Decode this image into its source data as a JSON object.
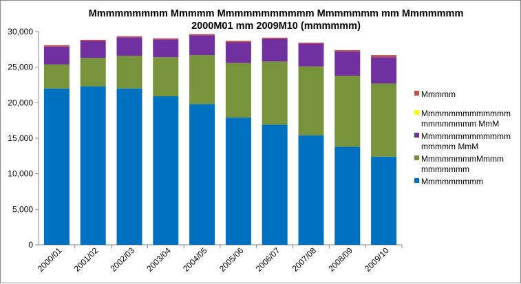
{
  "chart_data": {
    "type": "bar",
    "stacked": true,
    "title_lines": [
      "Mmmmmmmmm Mmmmm Mmmmmmmmmmm Mmmmmmm mm Mmmmmmm",
      "2000M01 mm 2009M10 (mmmmmm)"
    ],
    "categories": [
      "2000/01",
      "2001/02",
      "2002/03",
      "2003/04",
      "2004/05",
      "2005/06",
      "2006/07",
      "2007/08",
      "2008/09",
      "2009/10"
    ],
    "ylim": [
      0,
      30000
    ],
    "yticks": [
      "0",
      "5,000",
      "10,000",
      "15,000",
      "20,000",
      "25,000",
      "30,000"
    ],
    "ytick_values": [
      0,
      5000,
      10000,
      15000,
      20000,
      25000,
      30000
    ],
    "grid": false,
    "legend_position": "right",
    "series": [
      {
        "name": "Mmmmmmmmm",
        "legend_lines": [
          "Mmmmmmmmm"
        ],
        "color": "#0070c0",
        "values": [
          22000,
          22300,
          22000,
          20900,
          19800,
          17900,
          16900,
          15400,
          13800,
          12400
        ]
      },
      {
        "name": "MmmmmmmmMmmm mmmmmmm",
        "legend_lines": [
          "MmmmmmmmMmmm",
          "mmmmmmm"
        ],
        "color": "#77933c",
        "values": [
          3400,
          4000,
          4600,
          5500,
          6900,
          7700,
          8900,
          9700,
          10000,
          10300
        ]
      },
      {
        "name": "Mmmmmmmmmmmmm mmmmm MmM",
        "legend_lines": [
          "Mmmmmmmmmmmmm",
          "mmmmm MmM"
        ],
        "color": "#7030a0",
        "values": [
          2500,
          2400,
          2600,
          2500,
          2800,
          2900,
          3200,
          3200,
          3400,
          3700
        ]
      },
      {
        "name": "Mmmmmmmmmmmmm mmmmmmmm MmM",
        "legend_lines": [
          "Mmmmmmmmmmmmm",
          "mmmmmmmm MmM"
        ],
        "color": "#ffff00",
        "values": [
          0,
          0,
          0,
          0,
          0,
          0,
          0,
          0,
          0,
          0
        ]
      },
      {
        "name": "Mmmmm",
        "legend_lines": [
          "Mmmmm"
        ],
        "color": "#c0504d",
        "values": [
          200,
          150,
          150,
          150,
          150,
          200,
          150,
          150,
          200,
          300
        ]
      }
    ]
  }
}
